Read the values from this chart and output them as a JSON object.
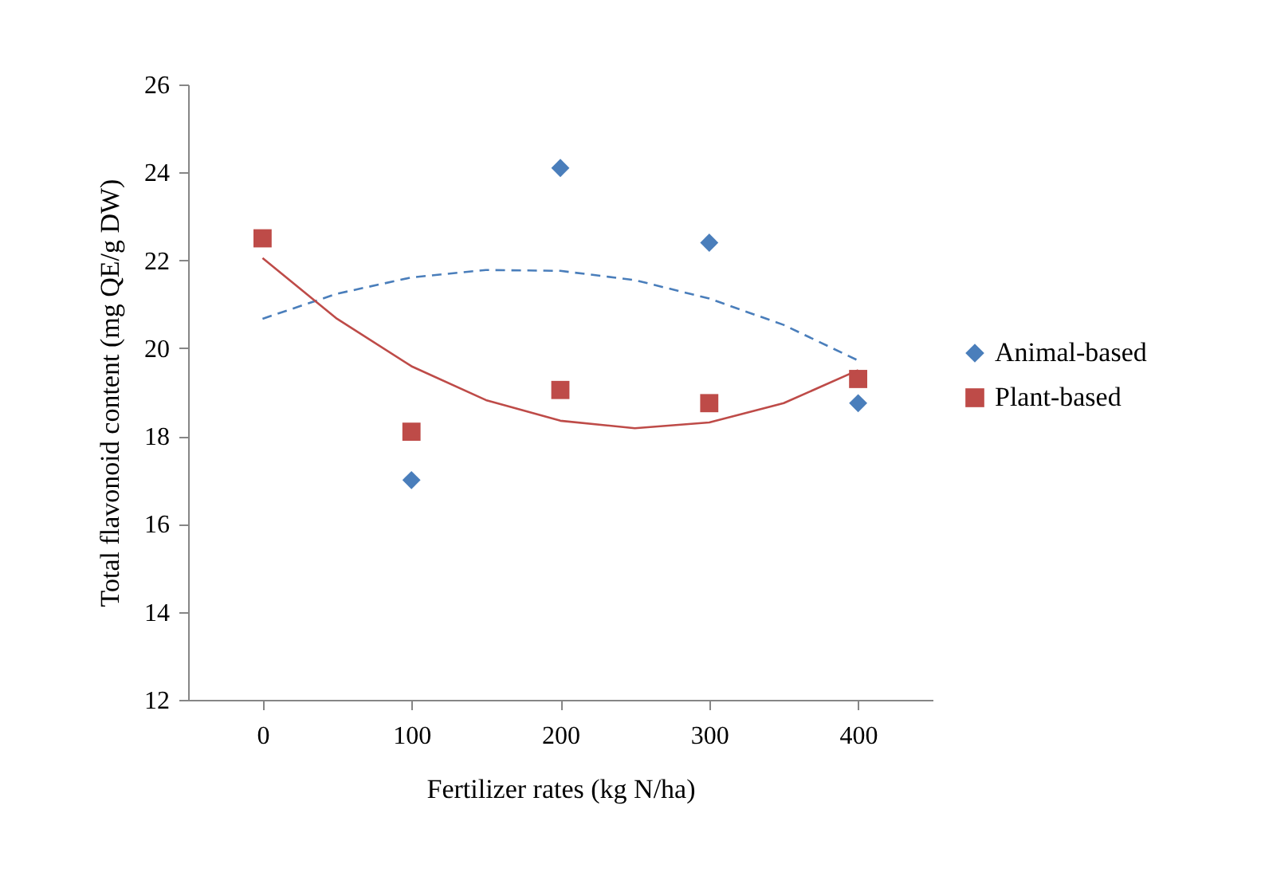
{
  "chart_data": {
    "type": "scatter",
    "xlabel": "Fertilizer rates (kg N/ha)",
    "ylabel": "Total flavonoid content (mg QE/g DW)",
    "xlim": [
      -50,
      450
    ],
    "xticks": [
      0,
      100,
      200,
      300,
      400
    ],
    "ylim": [
      12,
      26
    ],
    "yticks": [
      12,
      14,
      16,
      18,
      20,
      22,
      24,
      26
    ],
    "grid": false,
    "legend": "right",
    "series": [
      {
        "name": "Animal-based",
        "marker": "diamond",
        "color": "#4a7ebb",
        "x": [
          100,
          200,
          300,
          400
        ],
        "values": [
          17.0,
          24.1,
          22.4,
          18.75
        ]
      },
      {
        "name": "Plant-based",
        "marker": "square",
        "color": "#be4b48",
        "x": [
          0,
          100,
          200,
          300,
          400
        ],
        "values": [
          22.5,
          18.1,
          19.05,
          18.75,
          19.3
        ]
      },
      {
        "type": "line",
        "line_style": "dashed",
        "marker": "none",
        "color": "#4a7ebb",
        "x": [
          0,
          50,
          100,
          150,
          200,
          250,
          300,
          350,
          400
        ],
        "values": [
          20.67,
          21.24,
          21.61,
          21.78,
          21.76,
          21.55,
          21.13,
          20.53,
          19.72
        ]
      },
      {
        "type": "line",
        "line_style": "solid",
        "marker": "none",
        "color": "#be4b48",
        "x": [
          0,
          50,
          100,
          150,
          200,
          250,
          300,
          350,
          400
        ],
        "values": [
          22.05,
          20.67,
          19.59,
          18.82,
          18.35,
          18.18,
          18.31,
          18.75,
          19.5
        ]
      }
    ]
  }
}
